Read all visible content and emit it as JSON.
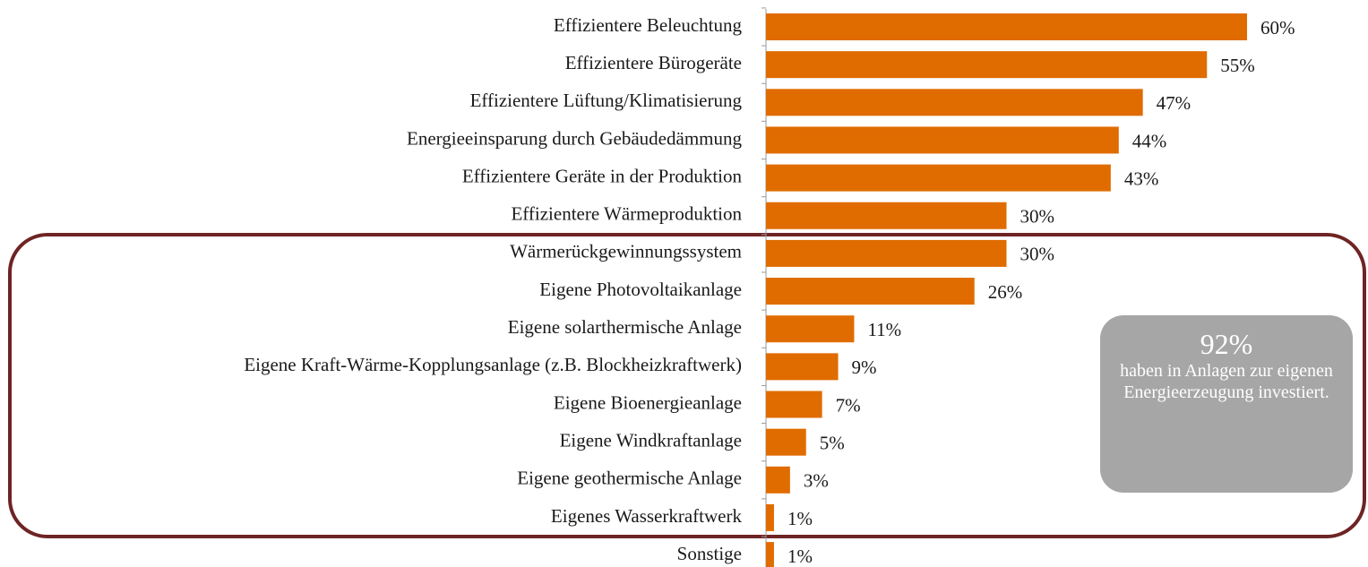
{
  "chart_data": {
    "type": "bar",
    "orientation": "horizontal",
    "categories": [
      "Effizientere Beleuchtung",
      "Effizientere Bürogeräte",
      "Effizientere Lüftung/Klimatisierung",
      "Energieeinsparung durch Gebäudedämmung",
      "Effizientere Geräte in der Produktion",
      "Effizientere Wärmeproduktion",
      "Wärmerückgewinnungssystem",
      "Eigene Photovoltaikanlage",
      "Eigene solarthermische Anlage",
      "Eigene Kraft-Wärme-Kopplungsanlage (z.B. Blockheizkraftwerk)",
      "Eigene Bioenergieanlage",
      "Eigene Windkraftanlage",
      "Eigene geothermische Anlage",
      "Eigenes Wasserkraftwerk",
      "Sonstige"
    ],
    "values": [
      60,
      55,
      47,
      44,
      43,
      30,
      30,
      26,
      11,
      9,
      7,
      5,
      3,
      1,
      1
    ],
    "value_labels": [
      "60%",
      "55%",
      "47%",
      "44%",
      "43%",
      "30%",
      "30%",
      "26%",
      "11%",
      "9%",
      "7%",
      "5%",
      "3%",
      "1%",
      "1%"
    ],
    "color": "#e06c00",
    "annotation": {
      "headline": "92%",
      "text": "haben in Anlagen zur eigenen Energieerzeugung investiert."
    }
  }
}
